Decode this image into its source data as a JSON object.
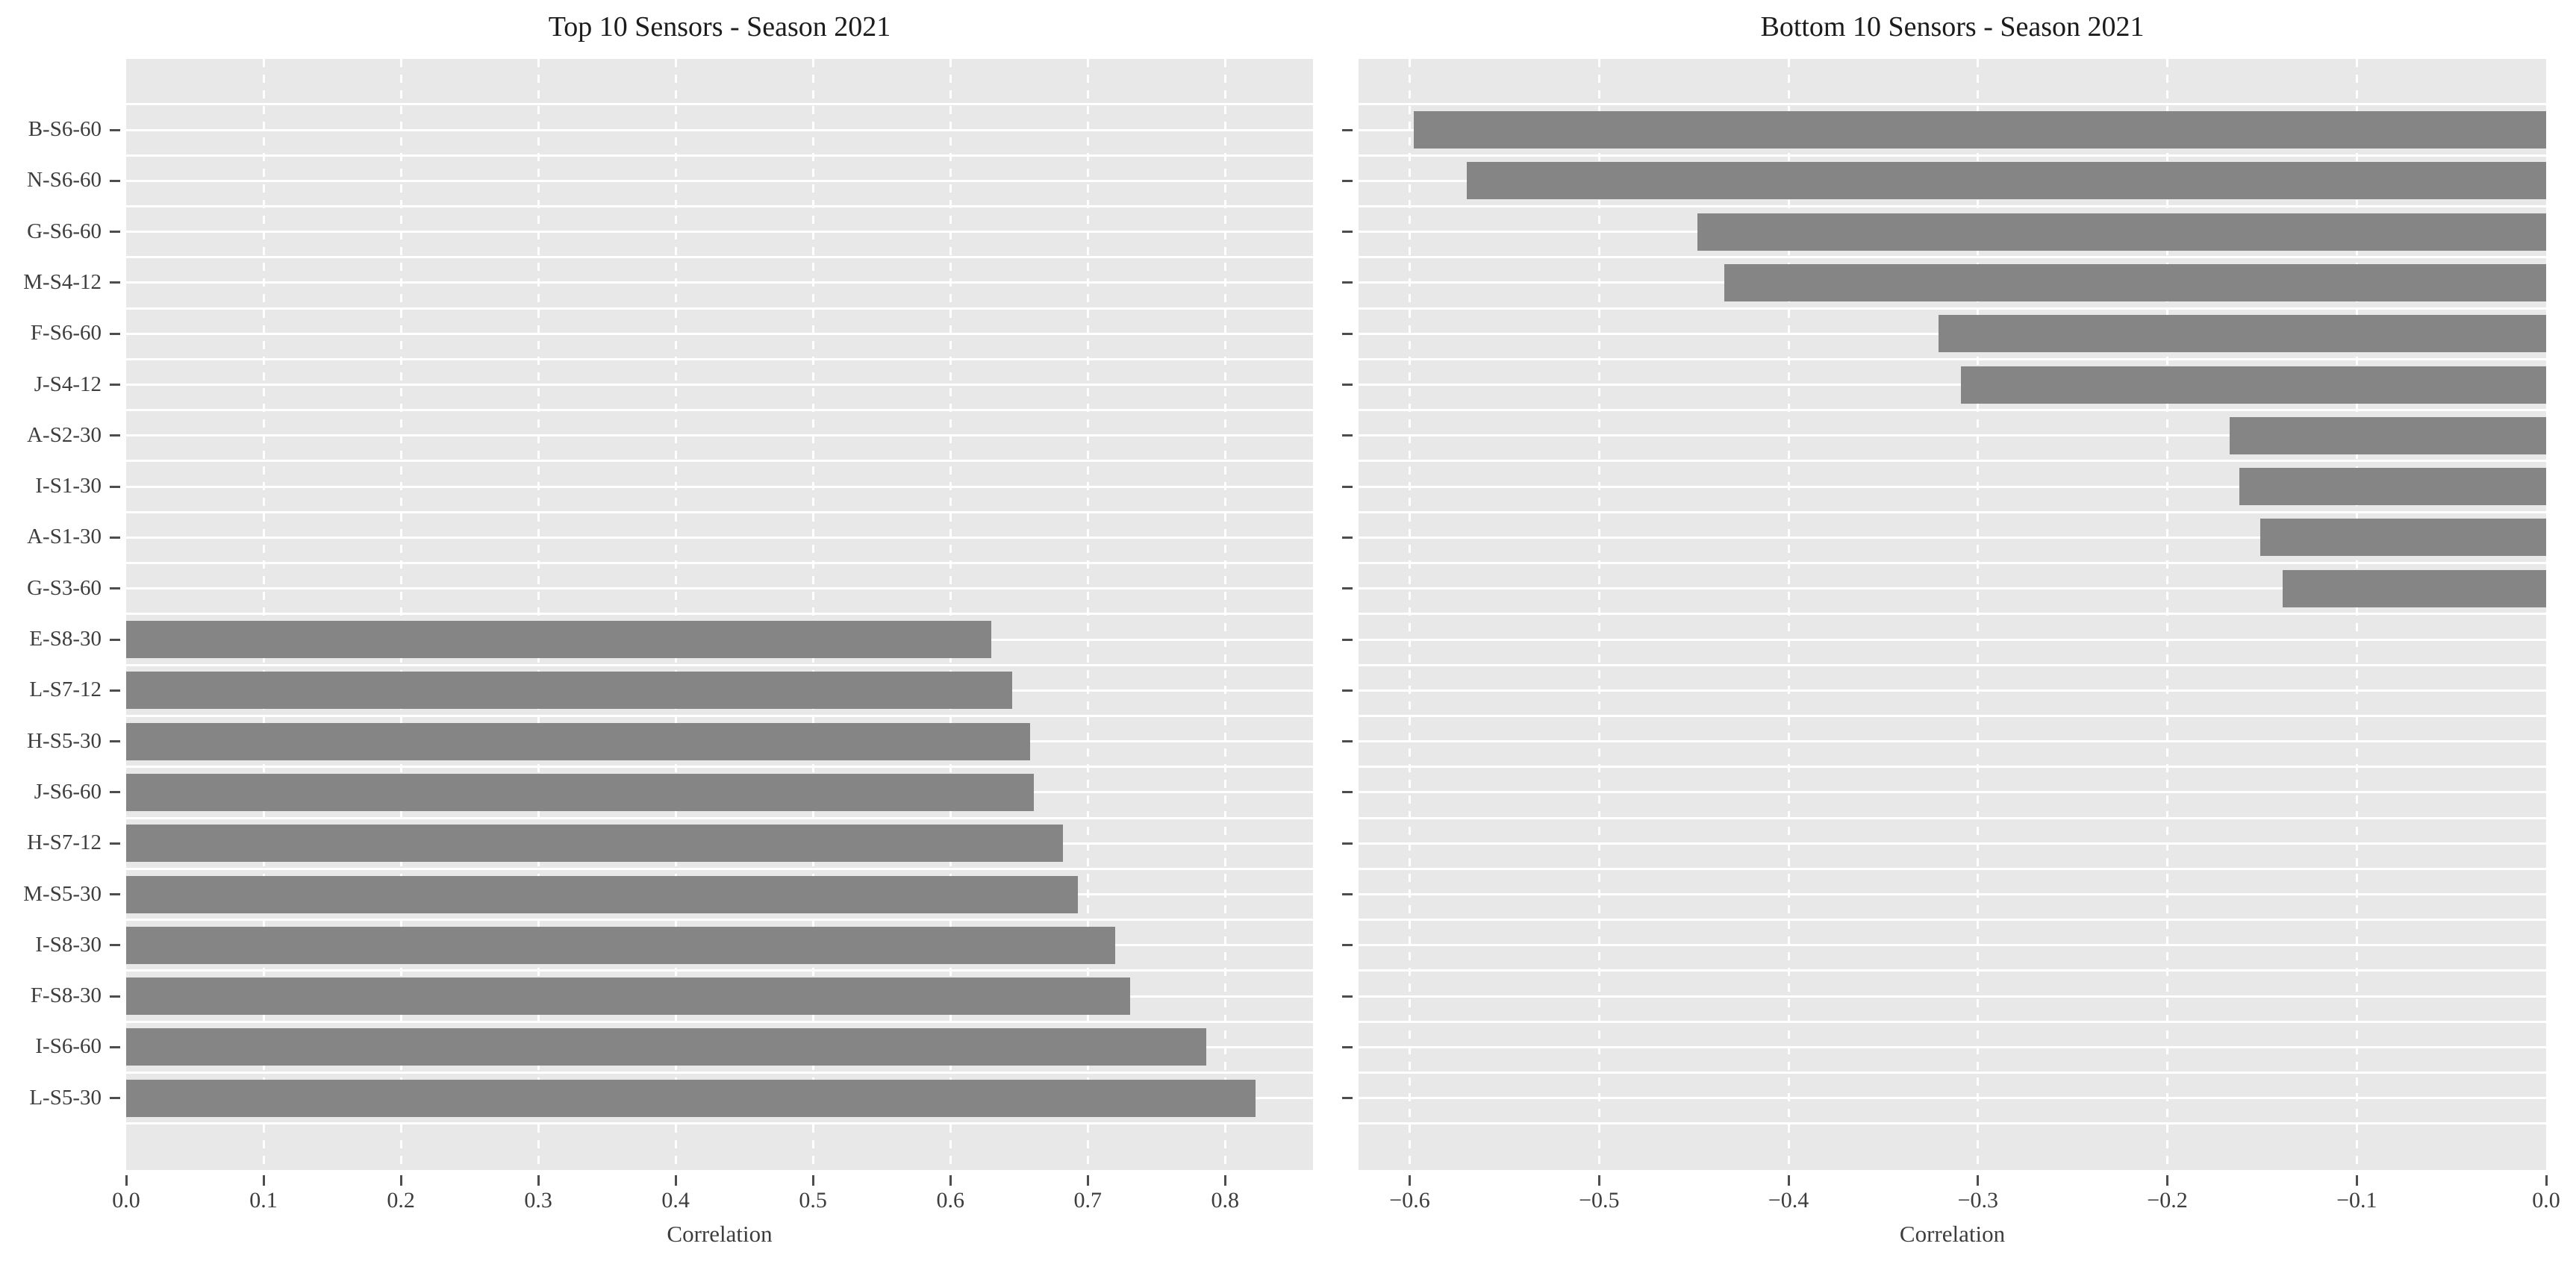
{
  "style": {
    "bar_color": "#858585",
    "panel_background": "#e8e8e8",
    "grid_color": "#ffffff",
    "title_color": "#1c1c1c",
    "tick_text_color": "#3d3d3d"
  },
  "categories_top_to_bottom": [
    "B-S6-60",
    "N-S6-60",
    "G-S6-60",
    "M-S4-12",
    "F-S6-60",
    "J-S4-12",
    "A-S2-30",
    "I-S1-30",
    "A-S1-30",
    "G-S3-60",
    "E-S8-30",
    "L-S7-12",
    "H-S5-30",
    "J-S6-60",
    "H-S7-12",
    "M-S5-30",
    "I-S8-30",
    "F-S8-30",
    "I-S6-60",
    "L-S5-30"
  ],
  "chart_data": [
    {
      "type": "bar",
      "orientation": "horizontal",
      "title": "Top 10 Sensors - Season 2021",
      "xlabel": "Correlation",
      "ylabel": "",
      "legend": false,
      "grid": true,
      "xlim": [
        0,
        0.864
      ],
      "xticks": [
        0.0,
        0.1,
        0.2,
        0.3,
        0.4,
        0.5,
        0.6,
        0.7,
        0.8
      ],
      "xtick_labels": [
        "0.0",
        "0.1",
        "0.2",
        "0.3",
        "0.4",
        "0.5",
        "0.6",
        "0.7",
        "0.8"
      ],
      "categories": [
        "B-S6-60",
        "N-S6-60",
        "G-S6-60",
        "M-S4-12",
        "F-S6-60",
        "J-S4-12",
        "A-S2-30",
        "I-S1-30",
        "A-S1-30",
        "G-S3-60",
        "E-S8-30",
        "L-S7-12",
        "H-S5-30",
        "J-S6-60",
        "H-S7-12",
        "M-S5-30",
        "I-S8-30",
        "F-S8-30",
        "I-S6-60",
        "L-S5-30"
      ],
      "values": [
        null,
        null,
        null,
        null,
        null,
        null,
        null,
        null,
        null,
        null,
        0.63,
        0.645,
        0.658,
        0.661,
        0.682,
        0.693,
        0.72,
        0.731,
        0.786,
        0.822
      ],
      "show_y_tick_labels": true
    },
    {
      "type": "bar",
      "orientation": "horizontal",
      "title": "Bottom 10 Sensors - Season 2021",
      "xlabel": "Correlation",
      "ylabel": "",
      "legend": false,
      "grid": true,
      "xlim": [
        -0.627,
        0
      ],
      "xticks": [
        -0.6,
        -0.5,
        -0.4,
        -0.3,
        -0.2,
        -0.1,
        0.0
      ],
      "xtick_labels": [
        "−0.6",
        "−0.5",
        "−0.4",
        "−0.3",
        "−0.2",
        "−0.1",
        "0.0"
      ],
      "categories": [
        "B-S6-60",
        "N-S6-60",
        "G-S6-60",
        "M-S4-12",
        "F-S6-60",
        "J-S4-12",
        "A-S2-30",
        "I-S1-30",
        "A-S1-30",
        "G-S3-60",
        "E-S8-30",
        "L-S7-12",
        "H-S5-30",
        "J-S6-60",
        "H-S7-12",
        "M-S5-30",
        "I-S8-30",
        "F-S8-30",
        "I-S6-60",
        "L-S5-30"
      ],
      "values": [
        -0.598,
        -0.57,
        -0.448,
        -0.434,
        -0.321,
        -0.309,
        -0.167,
        -0.162,
        -0.151,
        -0.139,
        null,
        null,
        null,
        null,
        null,
        null,
        null,
        null,
        null,
        null
      ],
      "show_y_tick_labels": false
    }
  ]
}
